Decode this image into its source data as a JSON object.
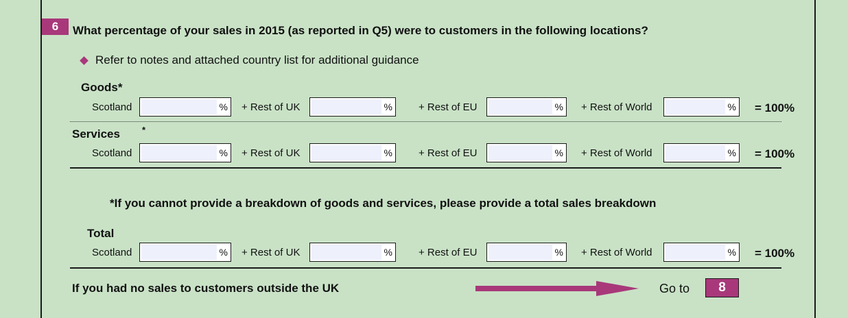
{
  "question": {
    "number": "6",
    "text": "What percentage of your sales in 2015 (as reported in Q5) were to customers in the following locations?",
    "note": "Refer to notes and attached country list for additional guidance"
  },
  "locations": {
    "scotland": "Scotland",
    "rest_uk": "+ Rest of UK",
    "rest_eu": "+ Rest of EU",
    "rest_world": "+ Rest of World",
    "percent_sign": "%",
    "total_label": "= 100%"
  },
  "goods": {
    "title": "Goods*",
    "values": [
      "",
      "",
      "",
      ""
    ]
  },
  "services": {
    "title": "Services",
    "star": "*",
    "values": [
      "",
      "",
      "",
      ""
    ]
  },
  "breakdown_note": "*If you cannot provide a breakdown of goods and services, please provide a total sales breakdown",
  "total": {
    "title": "Total",
    "values": [
      "",
      "",
      "",
      ""
    ]
  },
  "routing": {
    "text": "If you had no sales to customers outside the UK",
    "go_to": "Go to",
    "target": "8"
  },
  "colors": {
    "background": "#c9e2c6",
    "accent": "#a8387a"
  }
}
